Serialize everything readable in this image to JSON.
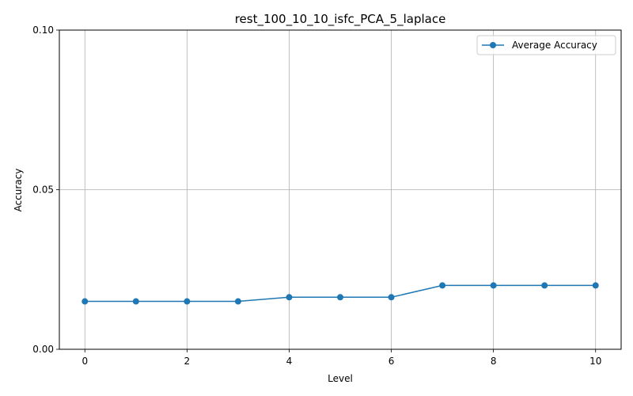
{
  "chart_data": {
    "type": "line",
    "title": "rest_100_10_10_isfc_PCA_5_laplace",
    "xlabel": "Level",
    "ylabel": "Accuracy",
    "xlim": [
      -0.5,
      10.5
    ],
    "ylim": [
      0.0,
      0.1
    ],
    "xticks": [
      0,
      2,
      4,
      6,
      8,
      10
    ],
    "xtick_labels": [
      "0",
      "2",
      "4",
      "6",
      "8",
      "10"
    ],
    "yticks": [
      0.0,
      0.05,
      0.1
    ],
    "ytick_labels": [
      "0.00",
      "0.05",
      "0.10"
    ],
    "grid": true,
    "legend_position": "top-right",
    "x": [
      0,
      1,
      2,
      3,
      4,
      5,
      6,
      7,
      8,
      9,
      10
    ],
    "series": [
      {
        "name": "Average Accuracy",
        "color": "#1f77b4",
        "marker": "circle",
        "values": [
          0.015,
          0.015,
          0.015,
          0.015,
          0.0163,
          0.0163,
          0.0163,
          0.02,
          0.02,
          0.02,
          0.02
        ]
      }
    ]
  }
}
